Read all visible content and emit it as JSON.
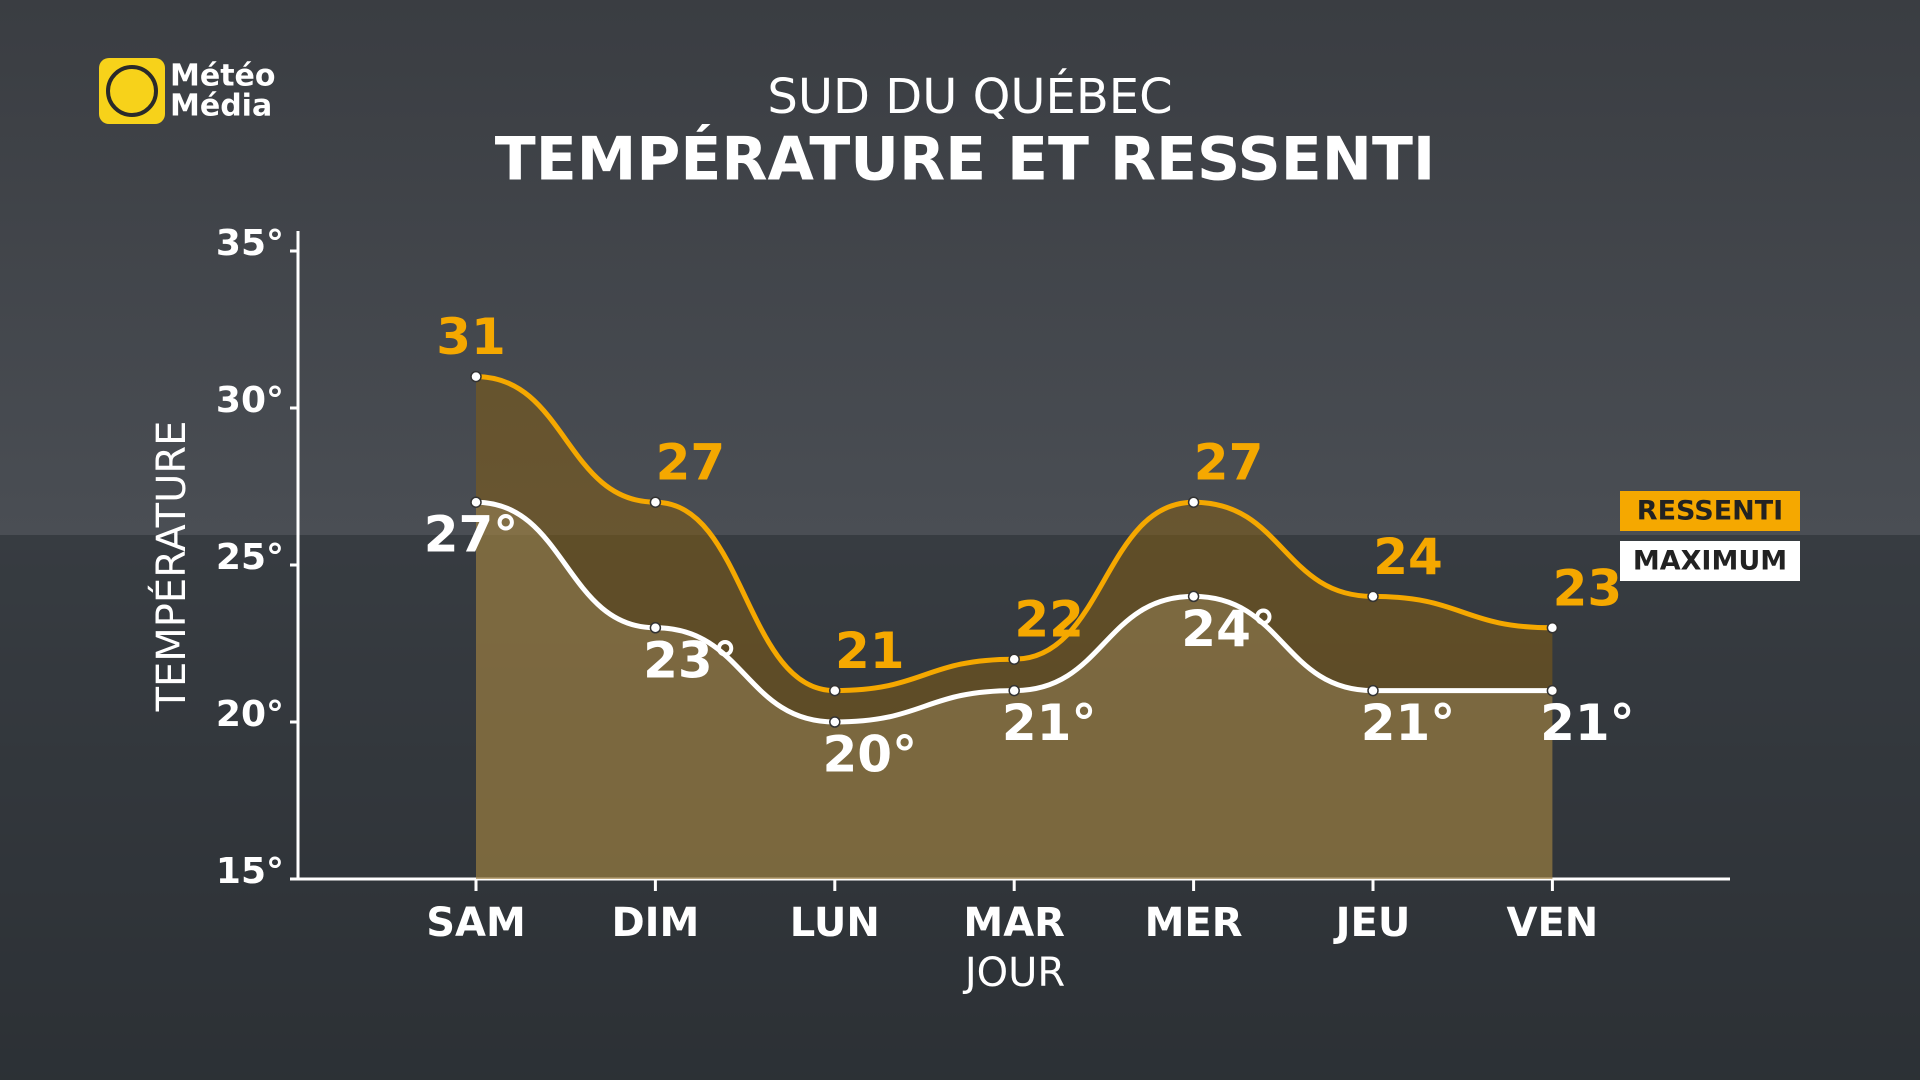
{
  "logo": [
    "Météo",
    "Média"
  ],
  "chart_data": {
    "type": "line",
    "subtitle": "SUD DU QUÉBEC",
    "title": "TEMPÉRATURE ET RESSENTI",
    "x_label": "JOUR",
    "y_label": "TEMPÉRATURE",
    "categories": [
      "SAM",
      "DIM",
      "LUN",
      "MAR",
      "MER",
      "JEU",
      "VEN"
    ],
    "series": [
      {
        "name": "RESSENTI",
        "color": "#f5a800",
        "values": [
          31,
          27,
          21,
          22,
          27,
          24,
          23
        ]
      },
      {
        "name": "MAXIMUM",
        "color": "#ffffff",
        "values": [
          27,
          23,
          20,
          21,
          24,
          21,
          21
        ],
        "value_labels": [
          "27°",
          "23°",
          "20°",
          "21°",
          "24°",
          "21°",
          "21°"
        ]
      }
    ],
    "ylim": [
      15,
      35
    ],
    "yticks": [
      {
        "value": 15,
        "label": "15°"
      },
      {
        "value": 20,
        "label": "20°"
      },
      {
        "value": 25,
        "label": "25°"
      },
      {
        "value": 30,
        "label": "30°"
      },
      {
        "value": 35,
        "label": "35°"
      }
    ],
    "grid": false,
    "legend": "right"
  }
}
